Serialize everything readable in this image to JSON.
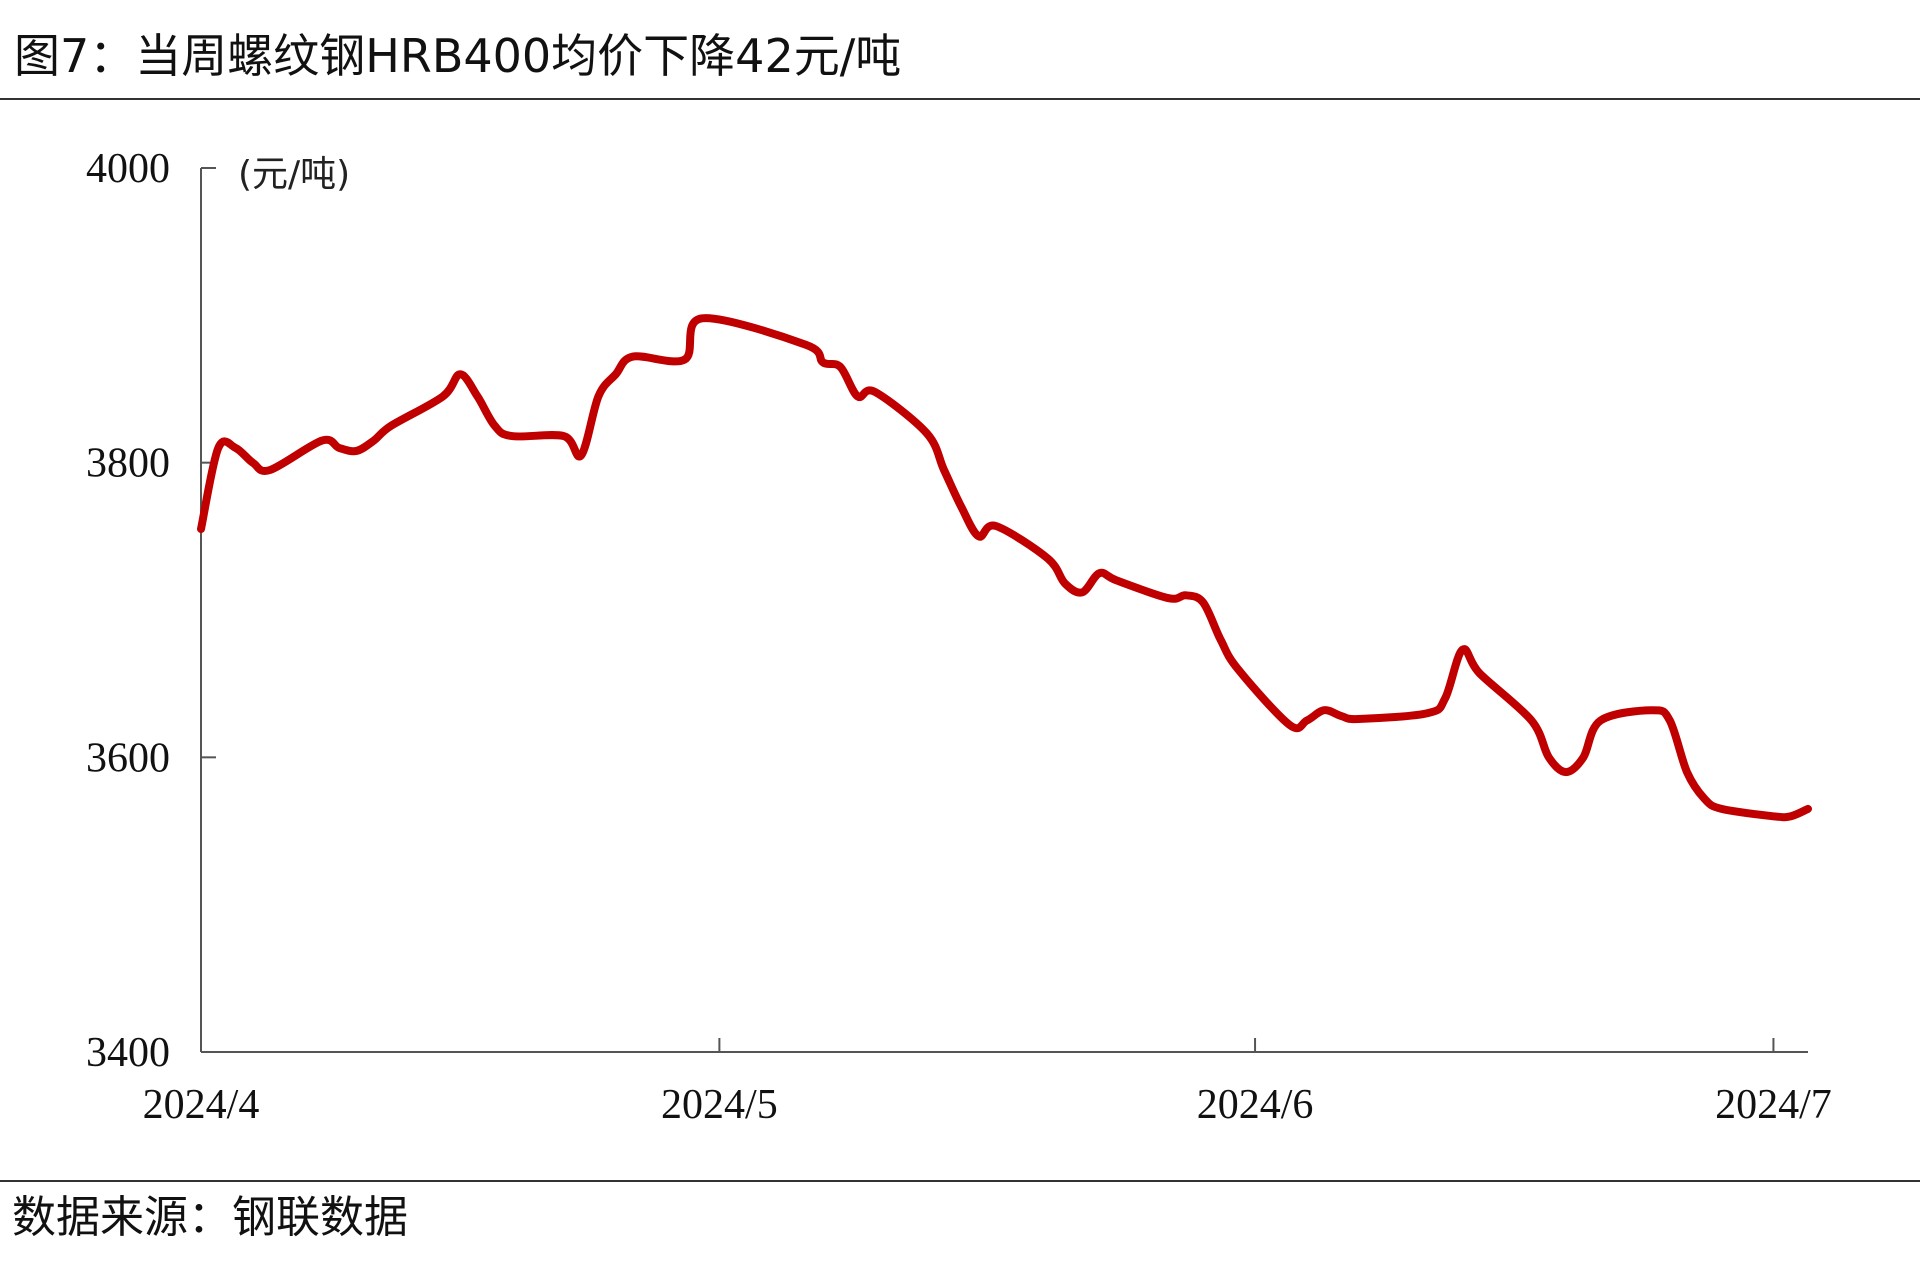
{
  "figure": {
    "title": "图7：当周螺纹钢HRB400均价下降42元/吨",
    "source": "数据来源：钢联数据"
  },
  "chart_data": {
    "type": "line",
    "title": "当周螺纹钢HRB400均价下降42元/吨",
    "ylabel": "(元/吨)",
    "xlabel": "",
    "ylim": [
      3400,
      4000
    ],
    "yticks": [
      3400,
      3600,
      3800,
      4000
    ],
    "xlim": [
      "2024-04-01",
      "2024-07-03"
    ],
    "xticks": [
      {
        "date": "2024-04-01",
        "label": "2024/4"
      },
      {
        "date": "2024-05-01",
        "label": "2024/5"
      },
      {
        "date": "2024-06-01",
        "label": "2024/6"
      },
      {
        "date": "2024-07-01",
        "label": "2024/7"
      }
    ],
    "grid": false,
    "legend": "none",
    "color": "#C00000",
    "series": [
      {
        "x": [
          "2024-04-01",
          "2024-04-02",
          "2024-04-03",
          "2024-04-04",
          "2024-04-05",
          "2024-04-08",
          "2024-04-09",
          "2024-04-10",
          "2024-04-11",
          "2024-04-12",
          "2024-04-15",
          "2024-04-16",
          "2024-04-17",
          "2024-04-18",
          "2024-04-19",
          "2024-04-22",
          "2024-04-23",
          "2024-04-24",
          "2024-04-25",
          "2024-04-26",
          "2024-04-29",
          "2024-04-30",
          "2024-05-06",
          "2024-05-07",
          "2024-05-08",
          "2024-05-09",
          "2024-05-10",
          "2024-05-13",
          "2024-05-14",
          "2024-05-15",
          "2024-05-16",
          "2024-05-17",
          "2024-05-20",
          "2024-05-21",
          "2024-05-22",
          "2024-05-23",
          "2024-05-24",
          "2024-05-27",
          "2024-05-28",
          "2024-05-29",
          "2024-05-30",
          "2024-05-31",
          "2024-06-03",
          "2024-06-04",
          "2024-06-05",
          "2024-06-06",
          "2024-06-07",
          "2024-06-11",
          "2024-06-12",
          "2024-06-13",
          "2024-06-14",
          "2024-06-17",
          "2024-06-18",
          "2024-06-19",
          "2024-06-20",
          "2024-06-21",
          "2024-06-24",
          "2024-06-25",
          "2024-06-26",
          "2024-06-27",
          "2024-06-28",
          "2024-07-01",
          "2024-07-02",
          "2024-07-03"
        ],
        "values": [
          3755,
          3810,
          3810,
          3800,
          3795,
          3815,
          3810,
          3808,
          3815,
          3825,
          3845,
          3860,
          3845,
          3825,
          3818,
          3818,
          3805,
          3845,
          3860,
          3872,
          3870,
          3898,
          3880,
          3868,
          3865,
          3845,
          3848,
          3820,
          3795,
          3770,
          3750,
          3757,
          3735,
          3718,
          3712,
          3725,
          3720,
          3708,
          3710,
          3705,
          3680,
          3660,
          3622,
          3625,
          3632,
          3628,
          3626,
          3630,
          3640,
          3673,
          3657,
          3625,
          3600,
          3590,
          3600,
          3625,
          3632,
          3625,
          3590,
          3572,
          3565,
          3560,
          3560,
          3565
        ]
      }
    ]
  }
}
